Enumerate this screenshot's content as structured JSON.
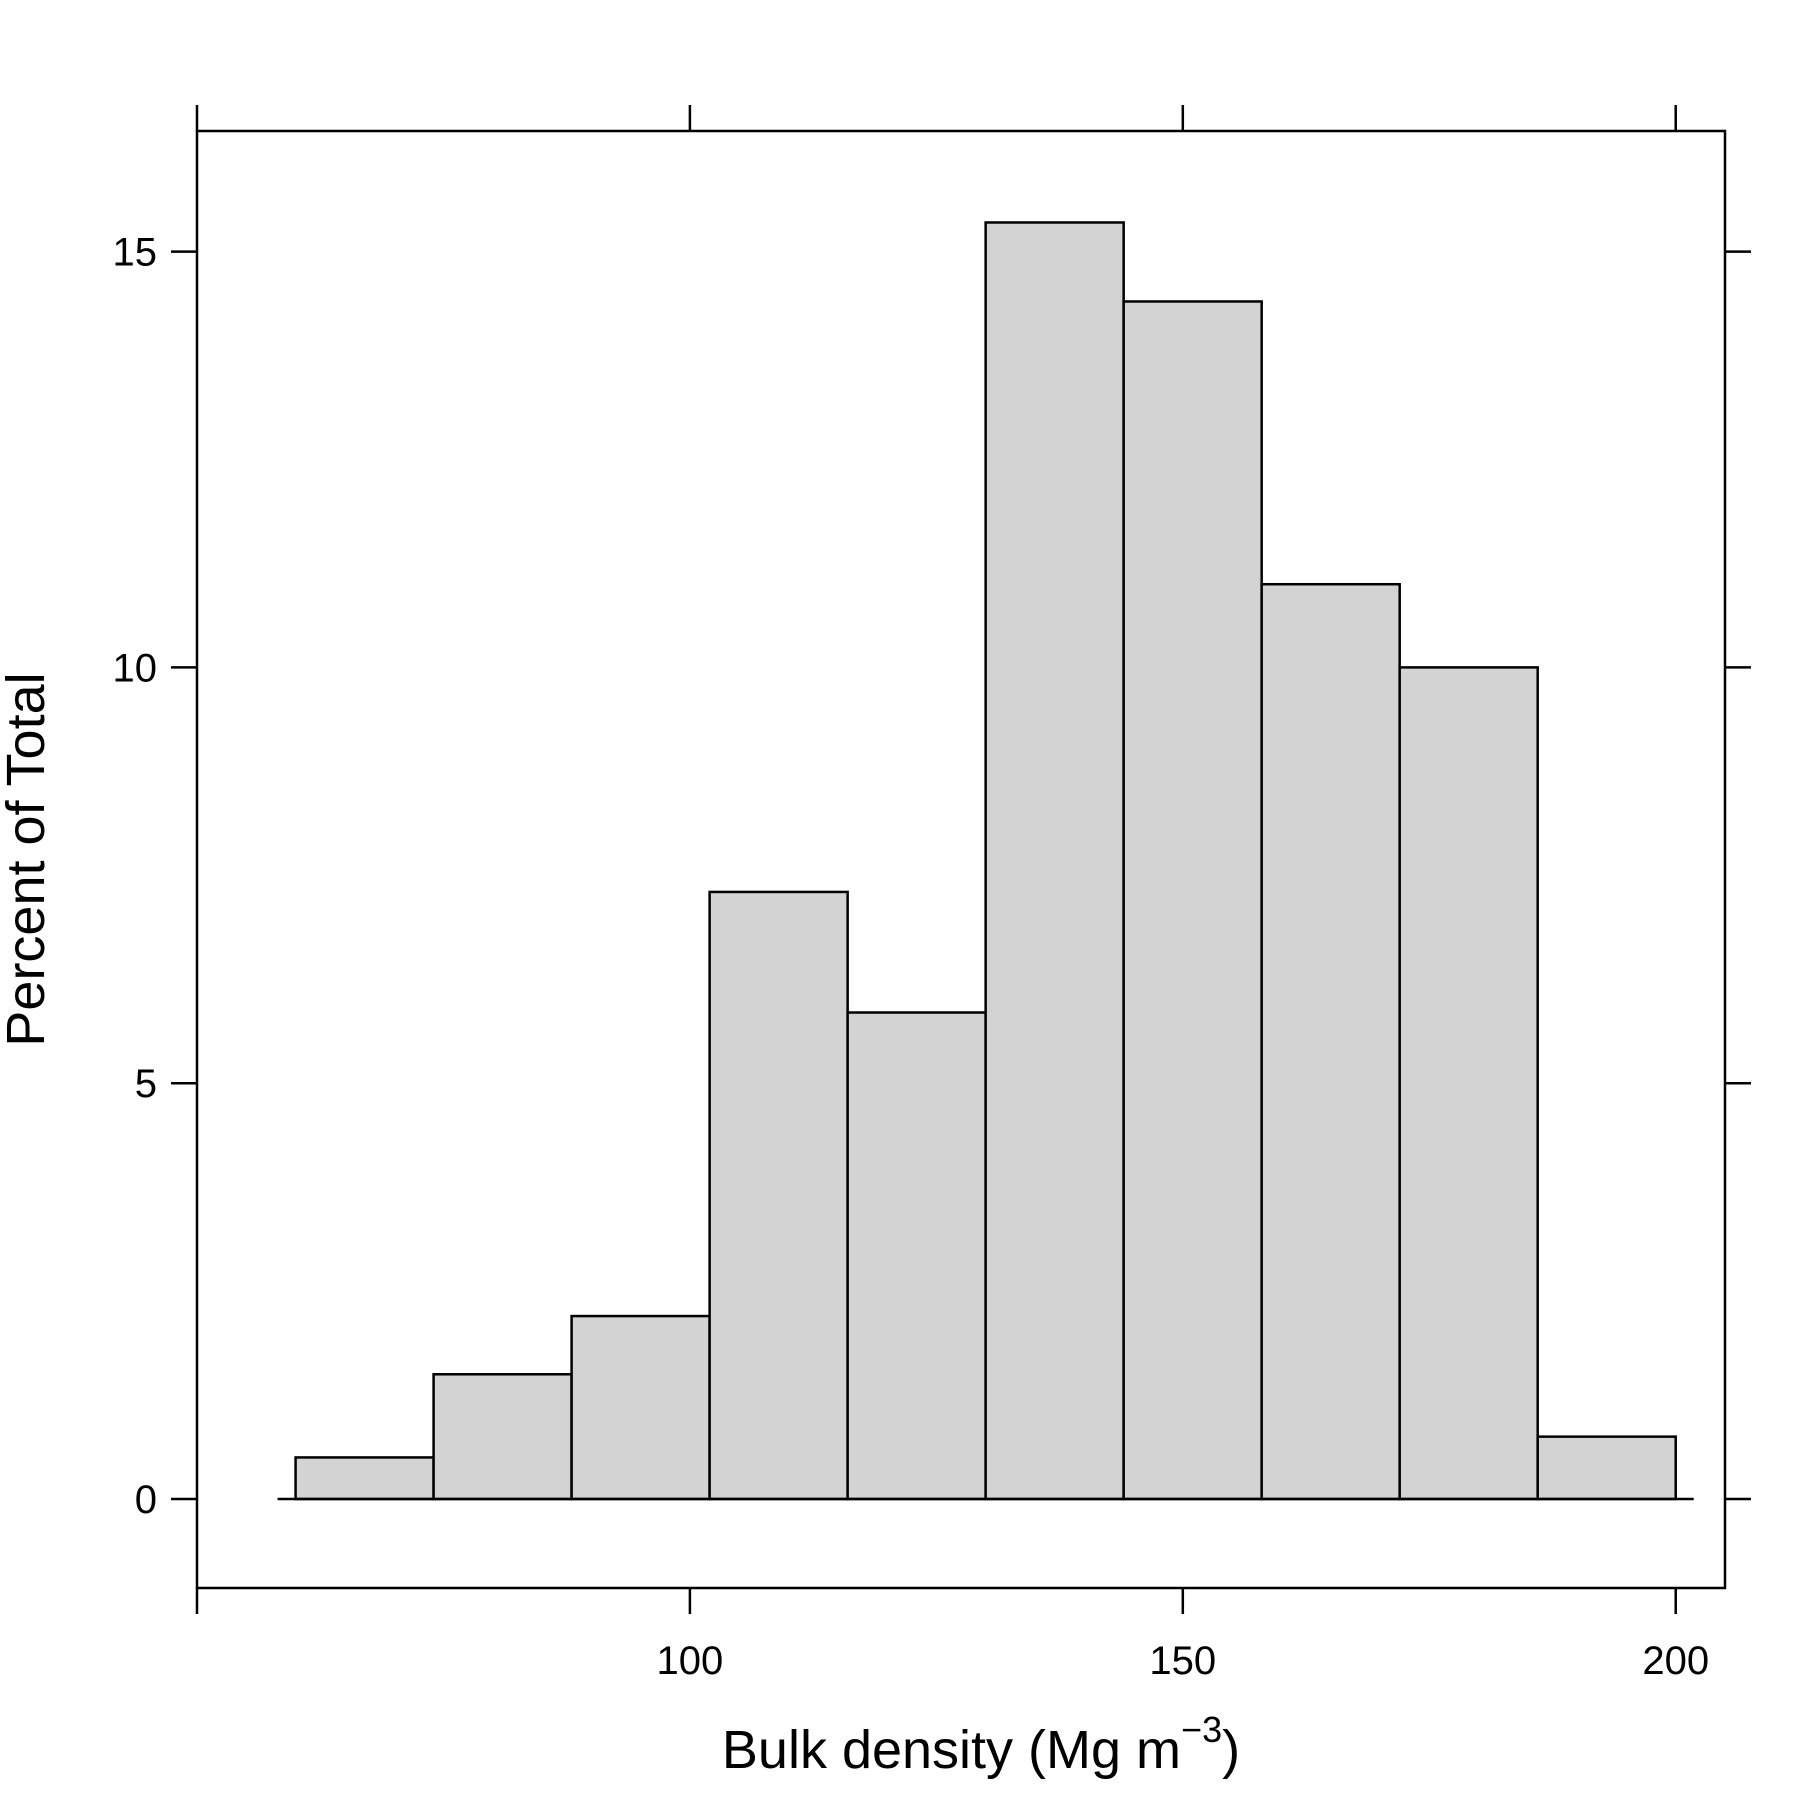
{
  "chart_data": {
    "type": "bar",
    "subtype": "histogram",
    "bins": [
      {
        "x0": 60,
        "x1": 74,
        "value": 0.5
      },
      {
        "x0": 74,
        "x1": 88,
        "value": 1.5
      },
      {
        "x0": 88,
        "x1": 102,
        "value": 2.2
      },
      {
        "x0": 102,
        "x1": 116,
        "value": 7.3
      },
      {
        "x0": 116,
        "x1": 130,
        "value": 5.85
      },
      {
        "x0": 130,
        "x1": 144,
        "value": 15.35
      },
      {
        "x0": 144,
        "x1": 158,
        "value": 14.4
      },
      {
        "x0": 158,
        "x1": 172,
        "value": 11.0
      },
      {
        "x0": 172,
        "x1": 186,
        "value": 10.0
      },
      {
        "x0": 186,
        "x1": 200,
        "value": 0.75
      }
    ],
    "xlabel": "Bulk density (Mg m",
    "xlabel_superscript": "−3",
    "xlabel_suffix": ")",
    "ylabel": "Percent of Total",
    "xticks": [
      50,
      100,
      150,
      200
    ],
    "xtick_labels": [
      "",
      "100",
      "150",
      "200"
    ],
    "yticks": [
      0,
      5,
      10,
      15
    ],
    "ytick_labels": [
      "0",
      "5",
      "10",
      "15"
    ],
    "xlim": [
      50,
      205
    ],
    "ylim": [
      -1.07,
      16.45
    ],
    "grid": false,
    "colors": {
      "bar_fill": "#d3d3d3",
      "stroke": "#000000",
      "background": "#ffffff"
    }
  }
}
